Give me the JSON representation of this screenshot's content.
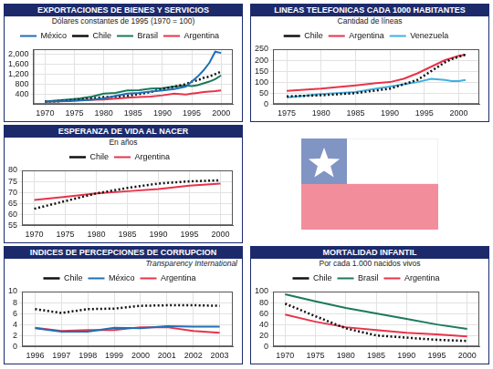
{
  "chart_data": [
    {
      "type": "line",
      "title": "EXPORTACIONES DE BIENES Y SERVICIOS",
      "subtitle": "Dólares constantes de 1995 (1970 = 100)",
      "x": [
        1970,
        1972,
        1974,
        1976,
        1978,
        1980,
        1982,
        1984,
        1986,
        1988,
        1990,
        1992,
        1994,
        1995,
        1996,
        1997,
        1998,
        1999,
        2000
      ],
      "series": [
        {
          "name": "México",
          "color": "#1f6fb5",
          "line_style": "solid",
          "values": [
            100,
            110,
            130,
            140,
            170,
            230,
            330,
            420,
            450,
            500,
            550,
            600,
            700,
            900,
            1100,
            1350,
            1650,
            2100,
            2050
          ]
        },
        {
          "name": "Chile",
          "color": "#111111",
          "line_style": "dotted",
          "values": [
            100,
            110,
            150,
            180,
            230,
            280,
            300,
            330,
            400,
            480,
            600,
            700,
            800,
            900,
            950,
            1050,
            1100,
            1200,
            1300
          ]
        },
        {
          "name": "Brasil",
          "color": "#1a7a5a",
          "line_style": "solid",
          "values": [
            100,
            140,
            180,
            230,
            300,
            420,
            450,
            550,
            560,
            620,
            640,
            700,
            750,
            720,
            760,
            830,
            900,
            1000,
            1150
          ]
        },
        {
          "name": "Argentina",
          "color": "#e8334a",
          "line_style": "solid",
          "values": [
            100,
            110,
            120,
            150,
            170,
            180,
            220,
            250,
            280,
            300,
            350,
            420,
            380,
            420,
            450,
            480,
            500,
            520,
            550
          ]
        }
      ],
      "xlim": [
        1968,
        2002
      ],
      "xticks": [
        1970,
        1975,
        1980,
        1985,
        1990,
        1995,
        2000
      ],
      "ylim": [
        0,
        2200
      ],
      "yticks": [
        400,
        800,
        {
          "value": 1200,
          "label": "1,200"
        },
        {
          "value": 1600,
          "label": "1,600"
        },
        {
          "value": 2000,
          "label": "2,000"
        }
      ],
      "grid": true,
      "legend": "top"
    },
    {
      "type": "line",
      "title": "LINEAS TELEFONICAS CADA 1000 HABITANTES",
      "subtitle": "Cantidad de líneas",
      "x": [
        1975,
        1980,
        1985,
        1988,
        1990,
        1992,
        1994,
        1996,
        1998,
        1999,
        2000,
        2001
      ],
      "series": [
        {
          "name": "Chile",
          "color": "#111111",
          "line_style": "dotted",
          "values": [
            35,
            40,
            50,
            62,
            70,
            90,
            110,
            150,
            190,
            205,
            215,
            225
          ]
        },
        {
          "name": "Argentina",
          "color": "#e8334a",
          "line_style": "solid",
          "values": [
            60,
            70,
            85,
            95,
            100,
            115,
            140,
            170,
            200,
            210,
            220,
            225
          ]
        },
        {
          "name": "Venezuela",
          "color": "#3fb0e0",
          "line_style": "solid",
          "values": [
            30,
            45,
            55,
            70,
            80,
            90,
            100,
            115,
            110,
            105,
            105,
            110
          ]
        }
      ],
      "xlim": [
        1973,
        2003
      ],
      "xticks": [
        1975,
        1980,
        1985,
        1990,
        1995,
        2000
      ],
      "ylim": [
        0,
        250
      ],
      "yticks": [
        0,
        50,
        100,
        150,
        200,
        250
      ],
      "grid": true,
      "legend": "top"
    },
    {
      "type": "line",
      "title": "ESPERANZA DE VIDA AL NACER",
      "subtitle": "En años",
      "x": [
        1970,
        1975,
        1980,
        1985,
        1990,
        1995,
        2000
      ],
      "series": [
        {
          "name": "Chile",
          "color": "#111111",
          "line_style": "dotted",
          "values": [
            62.5,
            66,
            69.5,
            72,
            74,
            75,
            75.5
          ]
        },
        {
          "name": "Argentina",
          "color": "#e8334a",
          "line_style": "solid",
          "values": [
            66.5,
            68,
            69.5,
            70.5,
            71.5,
            73,
            74
          ]
        }
      ],
      "xlim": [
        1968,
        2002
      ],
      "xticks": [
        1970,
        1975,
        1980,
        1985,
        1990,
        1995,
        2000
      ],
      "ylim": [
        55,
        80
      ],
      "yticks": [
        55,
        60,
        65,
        70,
        75,
        80
      ],
      "grid": true,
      "legend": "top"
    },
    {
      "type": "line",
      "title": "INDICES DE PERCEPCIONES DE CORRUPCION",
      "annotation": "Transparency International",
      "x": [
        1996,
        1997,
        1998,
        1999,
        2000,
        2001,
        2002,
        2003
      ],
      "series": [
        {
          "name": "Chile",
          "color": "#111111",
          "line_style": "dotted",
          "values": [
            6.8,
            6.1,
            6.8,
            6.9,
            7.4,
            7.5,
            7.5,
            7.4
          ]
        },
        {
          "name": "México",
          "color": "#1f6fb5",
          "line_style": "solid",
          "values": [
            3.3,
            2.7,
            2.7,
            3.4,
            3.3,
            3.7,
            3.6,
            3.6
          ]
        },
        {
          "name": "Argentina",
          "color": "#e8334a",
          "line_style": "solid",
          "values": [
            3.4,
            2.8,
            3.0,
            3.0,
            3.5,
            3.5,
            2.8,
            2.5
          ]
        }
      ],
      "xlim": [
        1995.5,
        2003.5
      ],
      "xticks": [
        1996,
        1997,
        1998,
        1999,
        2000,
        2001,
        2002,
        2003
      ],
      "ylim": [
        0,
        10
      ],
      "yticks": [
        0,
        2,
        4,
        6,
        8,
        10
      ],
      "grid": true,
      "legend": "top"
    },
    {
      "type": "line",
      "title": "MORTALIDAD INFANTIL",
      "subtitle": "Por cada 1.000 nacidos vivos",
      "x": [
        1970,
        1975,
        1980,
        1985,
        1990,
        1995,
        2000
      ],
      "series": [
        {
          "name": "Chile",
          "color": "#111111",
          "line_style": "dotted",
          "values": [
            78,
            55,
            33,
            20,
            16,
            12,
            10
          ]
        },
        {
          "name": "Brasil",
          "color": "#1a7a5a",
          "line_style": "solid",
          "values": [
            95,
            82,
            70,
            60,
            50,
            40,
            32
          ]
        },
        {
          "name": "Argentina",
          "color": "#e8334a",
          "line_style": "solid",
          "values": [
            58,
            45,
            35,
            30,
            25,
            22,
            18
          ]
        }
      ],
      "xlim": [
        1968,
        2002
      ],
      "xticks": [
        1970,
        1975,
        1980,
        1985,
        1990,
        1995,
        2000
      ],
      "ylim": [
        0,
        100
      ],
      "yticks": [
        0,
        20,
        40,
        60,
        80,
        100
      ],
      "grid": true,
      "legend": "top"
    }
  ]
}
